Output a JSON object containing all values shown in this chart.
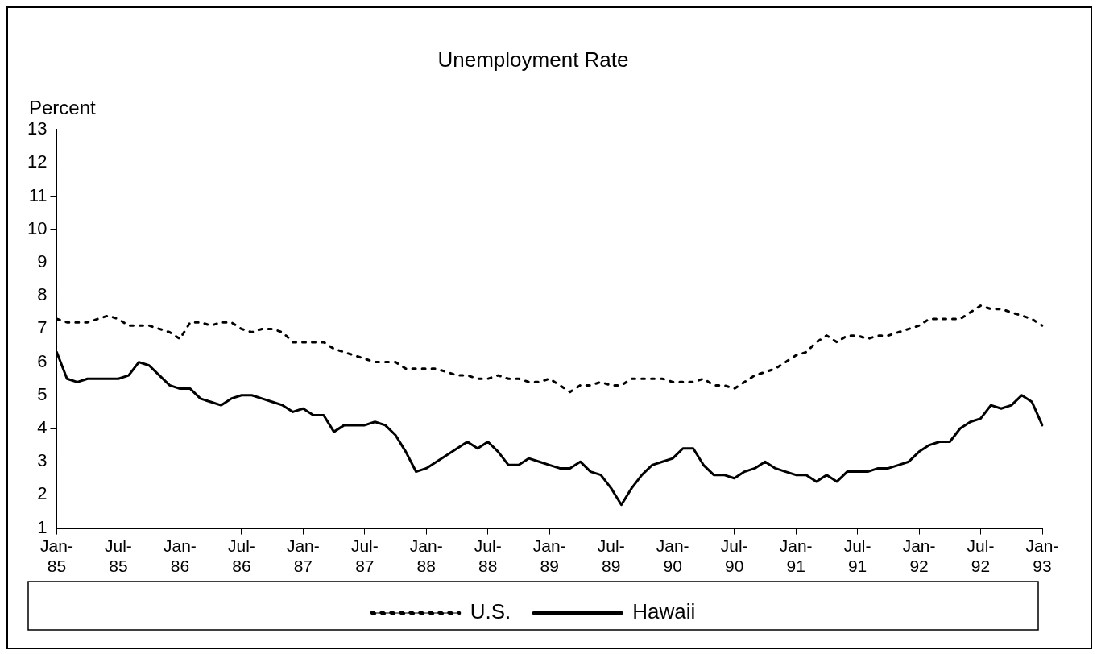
{
  "chart_data": {
    "type": "line",
    "title": "Unemployment Rate",
    "ylabel": "Percent",
    "categories": [
      "Jan-85",
      null,
      null,
      null,
      null,
      null,
      "Jul-85",
      null,
      null,
      null,
      null,
      null,
      "Jan-86",
      null,
      null,
      null,
      null,
      null,
      "Jul-86",
      null,
      null,
      null,
      null,
      null,
      "Jan-87",
      null,
      null,
      null,
      null,
      null,
      "Jul-87",
      null,
      null,
      null,
      null,
      null,
      "Jan-88",
      null,
      null,
      null,
      null,
      null,
      "Jul-88",
      null,
      null,
      null,
      null,
      null,
      "Jan-89",
      null,
      null,
      null,
      null,
      null,
      "Jul-89",
      null,
      null,
      null,
      null,
      null,
      "Jan-90",
      null,
      null,
      null,
      null,
      null,
      "Jul-90",
      null,
      null,
      null,
      null,
      null,
      "Jan-91",
      null,
      null,
      null,
      null,
      null,
      "Jul-91",
      null,
      null,
      null,
      null,
      null,
      "Jan-92",
      null,
      null,
      null,
      null,
      null,
      "Jul-92",
      null,
      null,
      null,
      null,
      null,
      "Jan-93"
    ],
    "series": [
      {
        "name": "U.S.",
        "color": "#000000",
        "line_style": "dotted",
        "values": [
          7.3,
          7.2,
          7.2,
          7.2,
          7.3,
          7.4,
          7.3,
          7.1,
          7.1,
          7.1,
          7.0,
          6.9,
          6.7,
          7.2,
          7.2,
          7.1,
          7.2,
          7.2,
          7.0,
          6.9,
          7.0,
          7.0,
          6.9,
          6.6,
          6.6,
          6.6,
          6.6,
          6.4,
          6.3,
          6.2,
          6.1,
          6.0,
          6.0,
          6.0,
          5.8,
          5.8,
          5.8,
          5.8,
          5.7,
          5.6,
          5.6,
          5.5,
          5.5,
          5.6,
          5.5,
          5.5,
          5.4,
          5.4,
          5.5,
          5.3,
          5.1,
          5.3,
          5.3,
          5.4,
          5.3,
          5.3,
          5.5,
          5.5,
          5.5,
          5.5,
          5.4,
          5.4,
          5.4,
          5.5,
          5.3,
          5.3,
          5.2,
          5.4,
          5.6,
          5.7,
          5.8,
          6.0,
          6.2,
          6.3,
          6.6,
          6.8,
          6.6,
          6.8,
          6.8,
          6.7,
          6.8,
          6.8,
          6.9,
          7.0,
          7.1,
          7.3,
          7.3,
          7.3,
          7.3,
          7.5,
          7.7,
          7.6,
          7.6,
          7.5,
          7.4,
          7.3,
          7.1
        ]
      },
      {
        "name": "Hawaii",
        "color": "#000000",
        "line_style": "solid",
        "values": [
          6.3,
          5.5,
          5.4,
          5.5,
          5.5,
          5.5,
          5.5,
          5.6,
          6.0,
          5.9,
          5.6,
          5.3,
          5.2,
          5.2,
          4.9,
          4.8,
          4.7,
          4.9,
          5.0,
          5.0,
          4.9,
          4.8,
          4.7,
          4.5,
          4.6,
          4.4,
          4.4,
          3.9,
          4.1,
          4.1,
          4.1,
          4.2,
          4.1,
          3.8,
          3.3,
          2.7,
          2.8,
          3.0,
          3.2,
          3.4,
          3.6,
          3.4,
          3.6,
          3.3,
          2.9,
          2.9,
          3.1,
          3.0,
          2.9,
          2.8,
          2.8,
          3.0,
          2.7,
          2.6,
          2.2,
          1.7,
          2.2,
          2.6,
          2.9,
          3.0,
          3.1,
          3.4,
          3.4,
          2.9,
          2.6,
          2.6,
          2.5,
          2.7,
          2.8,
          3.0,
          2.8,
          2.7,
          2.6,
          2.6,
          2.4,
          2.6,
          2.4,
          2.7,
          2.7,
          2.7,
          2.8,
          2.8,
          2.9,
          3.0,
          3.3,
          3.5,
          3.6,
          3.6,
          4.0,
          4.2,
          4.3,
          4.7,
          4.6,
          4.7,
          5.0,
          4.8,
          4.1
        ]
      }
    ],
    "ylim": [
      1,
      13
    ],
    "yticks": [
      1,
      2,
      3,
      4,
      5,
      6,
      7,
      8,
      9,
      10,
      11,
      12,
      13
    ],
    "grid": false,
    "legend": "bottom",
    "marker": "none"
  }
}
